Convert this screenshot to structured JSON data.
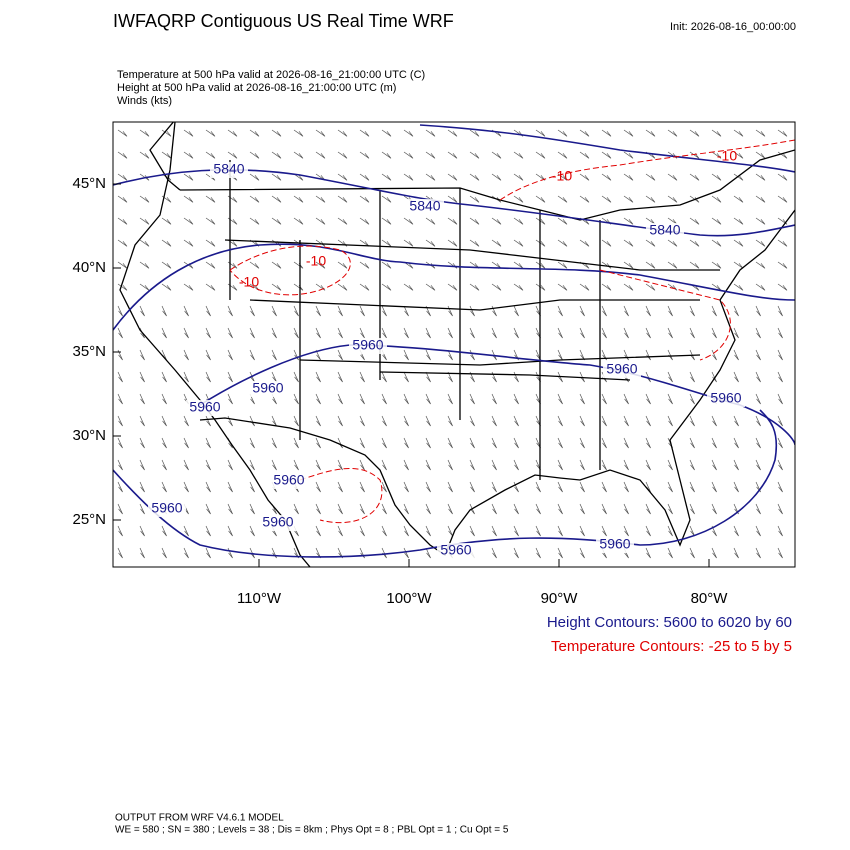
{
  "header": {
    "title": "IWFAQRP Contiguous US Real Time WRF",
    "init": "Init: 2026-08-16_00:00:00"
  },
  "fields": [
    "Temperature at 500 hPa valid at 2026-08-16_21:00:00 UTC   (C)",
    "Height at 500 hPa valid at 2026-08-16_21:00:00 UTC   (m)",
    "Winds   (kts)"
  ],
  "map": {
    "lat_labels": [
      "45°N",
      "40°N",
      "35°N",
      "30°N",
      "25°N"
    ],
    "lon_labels": [
      "110°W",
      "100°W",
      "90°W",
      "80°W"
    ],
    "height_labels": [
      "5840",
      "5840",
      "5840",
      "5960",
      "5960",
      "5960",
      "5960",
      "5960",
      "5960",
      "5960",
      "5960",
      "5960",
      "5960"
    ],
    "temperature_labels": [
      "-10",
      "-10",
      "-10",
      "-10"
    ]
  },
  "legend": {
    "height": "Height Contours: 5600 to 6020 by 60",
    "temperature": "Temperature Contours: -25 to 5 by 5"
  },
  "footer": {
    "model": "OUTPUT FROM WRF V4.6.1 MODEL",
    "settings": "WE = 580 ; SN = 380 ; Levels = 38 ; Dis = 8km ; Phys Opt = 8 ; PBL Opt = 1 ; Cu Opt = 5"
  }
}
